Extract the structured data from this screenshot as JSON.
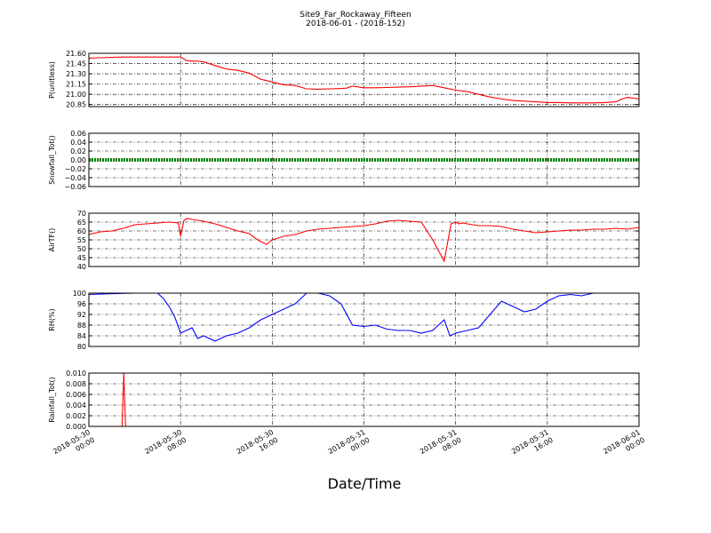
{
  "header": {
    "title": "Site9_Far_Rockaway_Fifteen",
    "subtitle": "2018-06-01 - (2018-152)"
  },
  "xaxis": {
    "label": "Date/Time",
    "ticks": [
      {
        "line1": "2018-05-30",
        "line2": "00:00",
        "hour": 0
      },
      {
        "line1": "2018-05-30",
        "line2": "08:00",
        "hour": 8
      },
      {
        "line1": "2018-05-30",
        "line2": "16:00",
        "hour": 16
      },
      {
        "line1": "2018-05-31",
        "line2": "00:00",
        "hour": 24
      },
      {
        "line1": "2018-05-31",
        "line2": "08:00",
        "hour": 32
      },
      {
        "line1": "2018-05-31",
        "line2": "16:00",
        "hour": 40
      },
      {
        "line1": "2018-06-01",
        "line2": "00:00",
        "hour": 48
      }
    ]
  },
  "colors": {
    "pressure": "#ff0000",
    "snowfall": "#008000",
    "airtemp": "#ff0000",
    "rh": "#0000ff",
    "rainfall": "#ff0000"
  },
  "chart_data": [
    {
      "type": "line",
      "ylabel": "P(unitless)",
      "ylim": [
        20.82,
        21.6
      ],
      "yticks": [
        "21.60",
        "21.45",
        "21.30",
        "21.15",
        "21.00",
        "20.85"
      ],
      "ytick_values": [
        21.6,
        21.45,
        21.3,
        21.15,
        21.0,
        20.85
      ],
      "x_hours": [
        0,
        1,
        2,
        3,
        4,
        5,
        6,
        7,
        8,
        8.5,
        9,
        9.5,
        10,
        11,
        12,
        13,
        14,
        15,
        16,
        17,
        18,
        19,
        20,
        21,
        22,
        22.5,
        23,
        24,
        25,
        26,
        27,
        28,
        29,
        30,
        31,
        32,
        33,
        34,
        35,
        36,
        37,
        38,
        39,
        40,
        41,
        42,
        43,
        44,
        45,
        46,
        46.5,
        47,
        47.5,
        48
      ],
      "values": [
        21.53,
        21.535,
        21.54,
        21.545,
        21.545,
        21.545,
        21.545,
        21.545,
        21.545,
        21.495,
        21.485,
        21.485,
        21.475,
        21.42,
        21.37,
        21.35,
        21.31,
        21.22,
        21.18,
        21.14,
        21.13,
        21.08,
        21.075,
        21.08,
        21.085,
        21.09,
        21.12,
        21.095,
        21.095,
        21.1,
        21.105,
        21.11,
        21.12,
        21.13,
        21.095,
        21.06,
        21.04,
        21.0,
        20.96,
        20.93,
        20.91,
        20.9,
        20.89,
        20.88,
        20.88,
        20.875,
        20.875,
        20.875,
        20.88,
        20.89,
        20.93,
        20.955,
        20.945,
        20.93
      ]
    },
    {
      "type": "line",
      "ylabel": "Snowfall_Tot()",
      "ylim": [
        -0.06,
        0.06
      ],
      "yticks": [
        "0.06",
        "0.04",
        "0.02",
        "0.00",
        "−0.02",
        "−0.04",
        "−0.06"
      ],
      "ytick_values": [
        0.06,
        0.04,
        0.02,
        0.0,
        -0.02,
        -0.04,
        -0.06
      ],
      "x_hours": [
        0,
        48
      ],
      "values": [
        0,
        0
      ]
    },
    {
      "type": "line",
      "ylabel": "AirTF()",
      "ylim": [
        40,
        70
      ],
      "yticks": [
        "70",
        "65",
        "60",
        "55",
        "50",
        "45",
        "40"
      ],
      "ytick_values": [
        70,
        65,
        60,
        55,
        50,
        45,
        40
      ],
      "x_hours": [
        0,
        1,
        2,
        3,
        4,
        5,
        6,
        7,
        7.8,
        8,
        8.3,
        8.6,
        9,
        10,
        11,
        12,
        13,
        14,
        14.5,
        15,
        15.5,
        16,
        16.5,
        17,
        18,
        19,
        20,
        21,
        22,
        23,
        24,
        25,
        26,
        27,
        28,
        29,
        30,
        31,
        31.6,
        32,
        32.3,
        32.6,
        33,
        34,
        35,
        36,
        37,
        38,
        39,
        40,
        41,
        42,
        43,
        44,
        45,
        46,
        47,
        48
      ],
      "values": [
        58,
        59.5,
        60,
        61.5,
        63.5,
        64,
        64.5,
        65,
        64.5,
        57,
        66,
        67,
        66.5,
        65.5,
        64,
        62,
        60,
        58.5,
        56,
        54,
        52.5,
        55,
        56,
        57,
        58,
        60,
        61,
        61.5,
        62,
        62.5,
        63,
        64,
        65.5,
        66,
        65.5,
        65,
        55,
        43,
        64,
        65,
        64,
        64.5,
        64,
        63,
        63,
        62.5,
        61,
        60,
        59,
        59.5,
        60,
        60.5,
        60.5,
        61,
        61,
        61.5,
        61,
        62
      ]
    },
    {
      "type": "line",
      "ylabel": "RH(%)",
      "ylim": [
        80,
        100
      ],
      "yticks": [
        "100",
        "96",
        "92",
        "88",
        "84",
        "80"
      ],
      "ytick_values": [
        100,
        96,
        92,
        88,
        84,
        80
      ],
      "x_hours": [
        0,
        2,
        4,
        6,
        6.5,
        7,
        7.5,
        8,
        8.5,
        9,
        9.5,
        10,
        11,
        12,
        13,
        14,
        15,
        16,
        17,
        18,
        19,
        20,
        21,
        22,
        23,
        24,
        25,
        26,
        27,
        28,
        29,
        30,
        31,
        31.5,
        32,
        33,
        34,
        35,
        36,
        37,
        38,
        39,
        40,
        41,
        42,
        43,
        44,
        45,
        46,
        47,
        48
      ],
      "values": [
        99.5,
        99.8,
        100,
        100,
        98,
        95,
        91,
        85,
        86,
        87,
        83,
        84,
        82,
        84,
        85,
        87,
        90,
        92,
        94,
        96,
        100,
        100,
        99,
        96,
        88,
        87.5,
        88,
        86.5,
        86,
        86,
        85,
        86,
        90,
        84,
        85,
        86,
        87,
        92,
        97,
        95,
        93,
        94,
        97,
        99,
        99.5,
        99,
        100,
        100,
        100,
        100,
        100
      ]
    },
    {
      "type": "line",
      "ylabel": "Rainfall_Tot()",
      "ylim": [
        0,
        0.01
      ],
      "yticks": [
        "0.010",
        "0.008",
        "0.006",
        "0.004",
        "0.002",
        "0.000"
      ],
      "ytick_values": [
        0.01,
        0.008,
        0.006,
        0.004,
        0.002,
        0.0
      ],
      "x_hours": [
        0,
        2.9,
        3.05,
        3.2,
        48
      ],
      "values": [
        0,
        0,
        0.01,
        0,
        0
      ]
    }
  ]
}
